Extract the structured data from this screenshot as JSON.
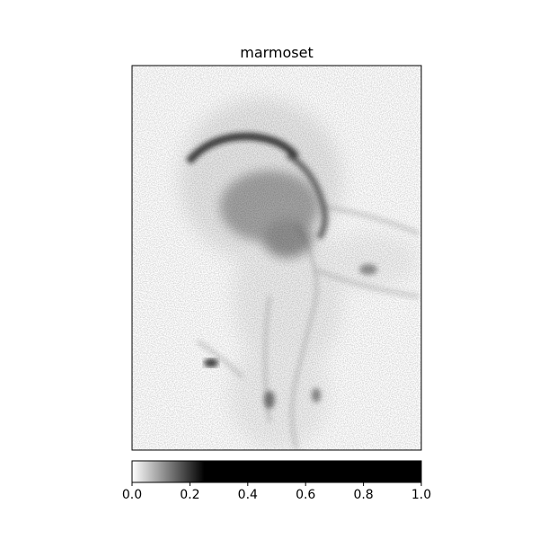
{
  "chart_data": {
    "type": "heatmap",
    "title": "marmoset",
    "colormap": "gray_r",
    "colorbar": {
      "orientation": "horizontal",
      "placement": "bottom",
      "range": [
        0.0,
        1.0
      ],
      "saturation_value": 0.25,
      "ticks": [
        0.0,
        0.2,
        0.4,
        0.6,
        0.8,
        1.0
      ],
      "tick_labels": [
        "0.0",
        "0.2",
        "0.4",
        "0.6",
        "0.8",
        "1.0"
      ]
    },
    "xticks": [],
    "yticks": [],
    "description_regions": [
      {
        "name": "head-arc",
        "intensity": 0.9
      },
      {
        "name": "upper-body",
        "intensity": 0.5
      },
      {
        "name": "right-limb",
        "intensity": 0.3
      },
      {
        "name": "lower-body",
        "intensity": 0.25
      },
      {
        "name": "left-spot",
        "intensity": 0.8
      }
    ]
  }
}
